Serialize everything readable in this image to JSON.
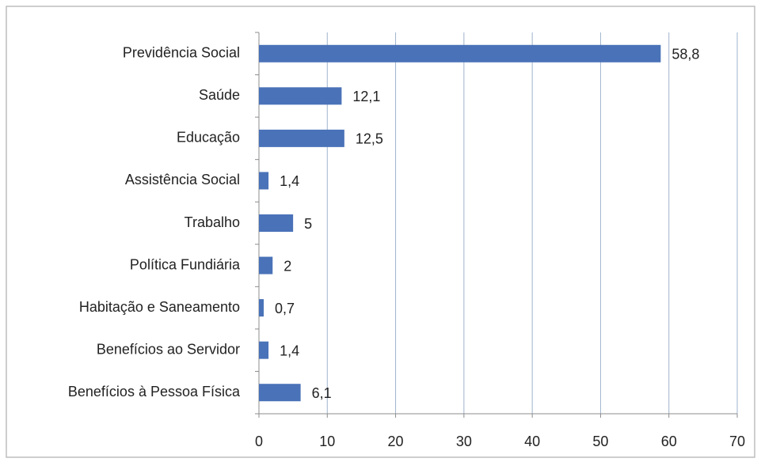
{
  "chart_data": {
    "type": "bar",
    "orientation": "horizontal",
    "categories": [
      "Previdência Social",
      "Saúde",
      "Educação",
      "Assistência Social",
      "Trabalho",
      "Política Fundiária",
      "Habitação e Saneamento",
      "Benefícios ao Servidor",
      "Benefícios à Pessoa Física"
    ],
    "values": [
      58.8,
      12.1,
      12.5,
      1.4,
      5,
      2,
      0.7,
      1.4,
      6.1
    ],
    "value_labels": [
      "58,8",
      "12,1",
      "12,5",
      "1,4",
      "5",
      "2",
      "0,7",
      "1,4",
      "6,1"
    ],
    "color": "#4a72b8",
    "xlim": [
      0,
      70
    ],
    "xticks": [
      0,
      10,
      20,
      30,
      40,
      50,
      60,
      70
    ],
    "grid": true
  }
}
